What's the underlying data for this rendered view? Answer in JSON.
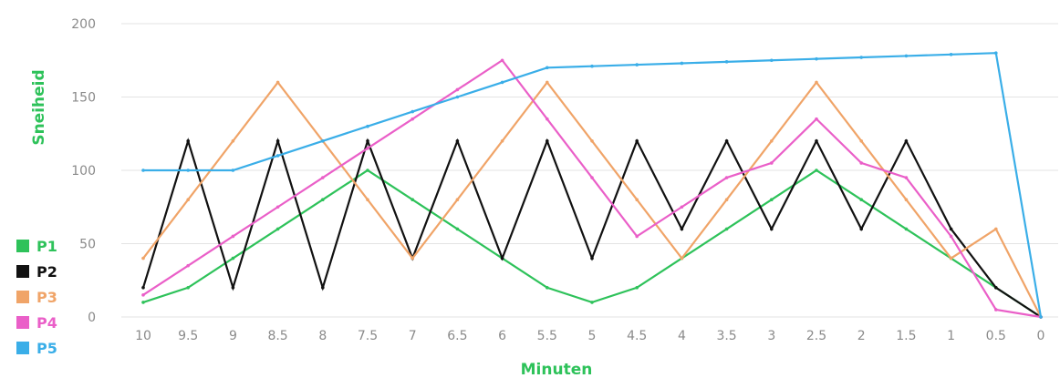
{
  "chart_data": {
    "type": "line",
    "title": "",
    "xlabel": "Minuten",
    "ylabel": "Sneiheid",
    "ylim": [
      0,
      200
    ],
    "yticks": [
      0,
      50,
      100,
      150,
      200
    ],
    "grid": true,
    "legend": "left, vertical, lower",
    "categories": [
      "10",
      "9.5",
      "9",
      "8.5",
      "8",
      "7.5",
      "7",
      "6.5",
      "6",
      "5.5",
      "5",
      "4.5",
      "4",
      "3.5",
      "3",
      "2.5",
      "2",
      "1.5",
      "1",
      "0.5",
      "0"
    ],
    "series": [
      {
        "name": "P1",
        "color": "#2ec25a",
        "values": [
          10,
          20,
          40,
          60,
          80,
          100,
          80,
          60,
          40,
          20,
          10,
          20,
          40,
          60,
          80,
          100,
          80,
          60,
          40,
          20,
          0
        ]
      },
      {
        "name": "P2",
        "color": "#111111",
        "values": [
          20,
          120,
          20,
          120,
          20,
          120,
          40,
          120,
          40,
          120,
          40,
          120,
          60,
          120,
          60,
          120,
          60,
          120,
          60,
          20,
          0
        ]
      },
      {
        "name": "P3",
        "color": "#f0a468",
        "values": [
          40,
          80,
          120,
          160,
          120,
          80,
          40,
          80,
          120,
          160,
          120,
          80,
          40,
          80,
          120,
          160,
          120,
          80,
          40,
          60,
          0
        ]
      },
      {
        "name": "P4",
        "color": "#ea5fc8",
        "values": [
          15,
          35,
          55,
          75,
          95,
          115,
          135,
          155,
          175,
          135,
          95,
          55,
          75,
          95,
          105,
          135,
          105,
          95,
          55,
          5,
          0
        ]
      },
      {
        "name": "P5",
        "color": "#3aaee8",
        "values": [
          100,
          100,
          100,
          110,
          120,
          130,
          140,
          150,
          160,
          170,
          171,
          172,
          173,
          174,
          175,
          176,
          177,
          178,
          179,
          180,
          0
        ]
      }
    ]
  }
}
